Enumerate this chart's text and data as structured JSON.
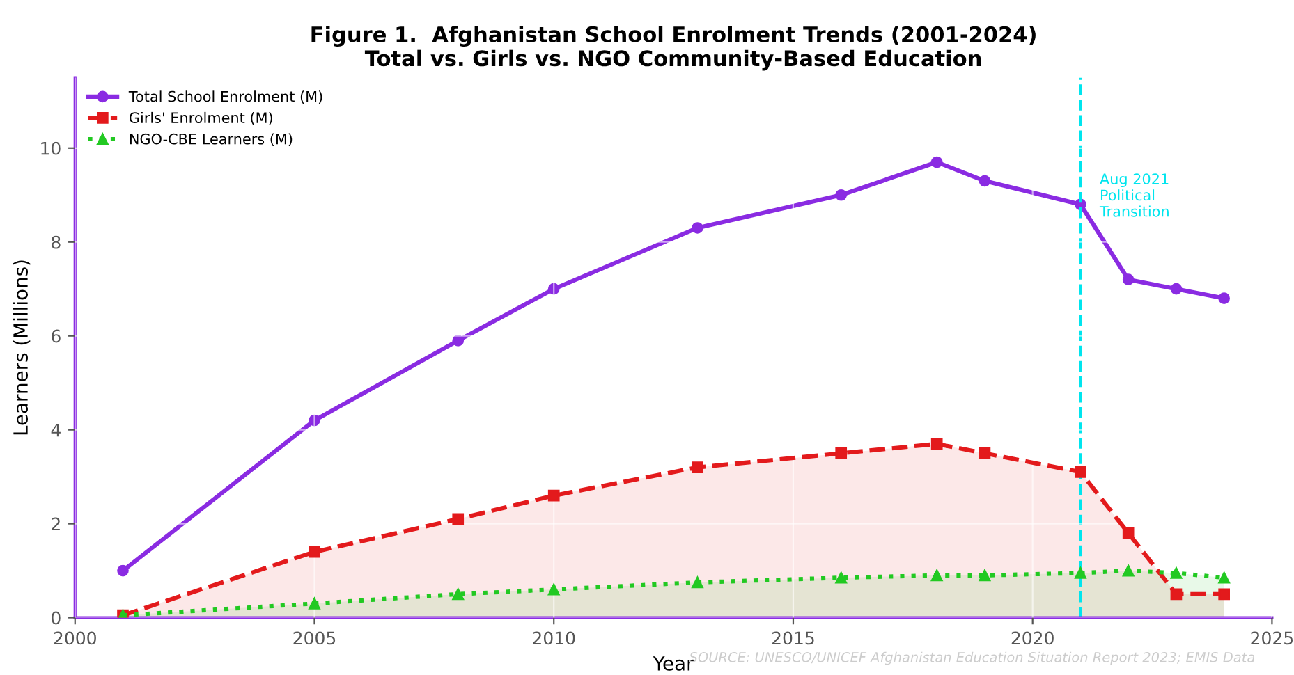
{
  "chart_data": {
    "type": "line",
    "title": "Figure 1.  Afghanistan School Enrolment Trends (2001-2024)\nTotal vs. Girls vs. NGO Community-Based Education",
    "xlabel": "Year",
    "ylabel": "Learners (Millions)",
    "x": [
      2001,
      2005,
      2008,
      2010,
      2013,
      2016,
      2018,
      2019,
      2021,
      2022,
      2023,
      2024
    ],
    "series": [
      {
        "name": "Total School Enrolment (M)",
        "color": "#8a2be2",
        "type": "line",
        "marker": "circle",
        "line_style": "solid",
        "values": [
          1.0,
          4.2,
          5.9,
          7.0,
          8.3,
          9.0,
          9.7,
          9.3,
          8.8,
          7.2,
          7.0,
          6.8
        ]
      },
      {
        "name": "Girls' Enrolment (M)",
        "color": "#e31a1c",
        "type": "area",
        "marker": "square",
        "line_style": "dashed",
        "values": [
          0.05,
          1.4,
          2.1,
          2.6,
          3.2,
          3.5,
          3.7,
          3.5,
          3.1,
          1.8,
          0.5,
          0.5
        ]
      },
      {
        "name": "NGO-CBE Learners (M)",
        "color": "#22c922",
        "type": "area",
        "marker": "triangle",
        "line_style": "dotted",
        "values": [
          0.05,
          0.3,
          0.5,
          0.6,
          0.75,
          0.85,
          0.9,
          0.9,
          0.95,
          1.0,
          0.95,
          0.85
        ]
      }
    ],
    "xlim": [
      2000,
      2025
    ],
    "xticks": [
      2000,
      2005,
      2010,
      2015,
      2020,
      2025
    ],
    "ylim": [
      0,
      11.5
    ],
    "yticks": [
      0,
      2,
      4,
      6,
      8,
      10
    ],
    "ref_lines": [
      {
        "axis": "x",
        "value": 2021,
        "label": "Aug 2021\nPolitical\nTransition",
        "color": "#00e5ee",
        "line_style": "dashed"
      }
    ],
    "annotations": [
      "SOURCE: UNESCO/UNICEF Afghanistan Education Situation Report 2023; EMIS Data"
    ],
    "grid": true,
    "legend": "top left"
  }
}
